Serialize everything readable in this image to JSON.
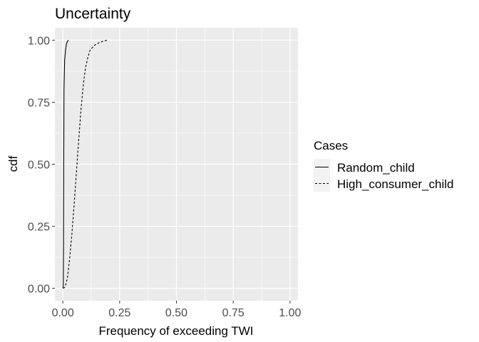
{
  "chart_data": {
    "type": "line",
    "title": "Uncertainty",
    "xlabel": "Frequency of exceeding TWI",
    "ylabel": "cdf",
    "xlim": [
      -0.035,
      1.035
    ],
    "ylim": [
      -0.05,
      1.05
    ],
    "x_ticks": [
      "0.00",
      "0.25",
      "0.50",
      "0.75",
      "1.00"
    ],
    "y_ticks": [
      "0.00",
      "0.25",
      "0.50",
      "0.75",
      "1.00"
    ],
    "grid": true,
    "panel_background": "#ebebeb",
    "grid_color": "#ffffff",
    "legend": {
      "title": "Cases",
      "position": "right",
      "entries": [
        "Random_child",
        "High_consumer_child"
      ]
    },
    "series": [
      {
        "name": "Random_child",
        "line_style": "solid",
        "color": "#000000",
        "points": [
          [
            0.0,
            0.0
          ],
          [
            0.002,
            0.01
          ],
          [
            0.003,
            0.16
          ],
          [
            0.004,
            0.52
          ],
          [
            0.005,
            0.8
          ],
          [
            0.008,
            0.92
          ],
          [
            0.012,
            0.96
          ],
          [
            0.016,
            0.985
          ],
          [
            0.02,
            0.995
          ],
          [
            0.025,
            1.0
          ]
        ]
      },
      {
        "name": "High_consumer_child",
        "line_style": "dashed",
        "color": "#000000",
        "points": [
          [
            0.002,
            0.0
          ],
          [
            0.01,
            0.005
          ],
          [
            0.02,
            0.04
          ],
          [
            0.03,
            0.12
          ],
          [
            0.04,
            0.22
          ],
          [
            0.05,
            0.34
          ],
          [
            0.06,
            0.47
          ],
          [
            0.07,
            0.6
          ],
          [
            0.08,
            0.72
          ],
          [
            0.09,
            0.82
          ],
          [
            0.1,
            0.89
          ],
          [
            0.11,
            0.93
          ],
          [
            0.12,
            0.96
          ],
          [
            0.14,
            0.98
          ],
          [
            0.16,
            0.99
          ],
          [
            0.18,
            0.997
          ],
          [
            0.2,
            1.0
          ]
        ]
      }
    ]
  }
}
